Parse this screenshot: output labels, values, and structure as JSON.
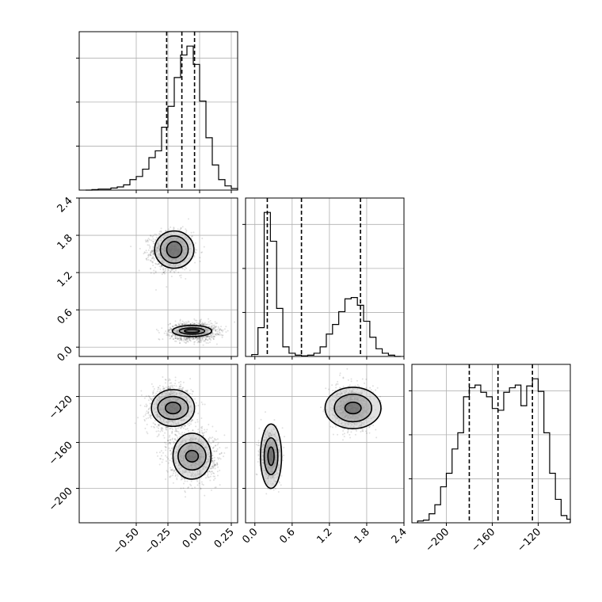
{
  "chart_data": {
    "type": "corner",
    "title": "",
    "parameters": [
      {
        "ticks": [
          -0.5,
          -0.25,
          0.0,
          0.25
        ],
        "tick_labels": [
          "−0.50",
          "−0.25",
          "0.00",
          "0.25"
        ],
        "range": [
          -0.95,
          0.3
        ],
        "quantiles": [
          -0.26,
          -0.14,
          -0.04
        ],
        "hist": {
          "edges": [
            -0.9,
            -0.85,
            -0.8,
            -0.75,
            -0.7,
            -0.65,
            -0.6,
            -0.55,
            -0.5,
            -0.45,
            -0.4,
            -0.35,
            -0.3,
            -0.25,
            -0.2,
            -0.15,
            -0.1,
            -0.05,
            0.0,
            0.05,
            0.1,
            0.15,
            0.2,
            0.25,
            0.3
          ],
          "counts": [
            0,
            1,
            2,
            2,
            4,
            6,
            10,
            20,
            26,
            40,
            62,
            75,
            120,
            160,
            215,
            258,
            275,
            240,
            170,
            100,
            48,
            20,
            8,
            3
          ]
        }
      },
      {
        "ticks": [
          0.0,
          0.6,
          1.2,
          1.8,
          2.4
        ],
        "tick_labels": [
          "0.0",
          "0.6",
          "1.2",
          "1.8",
          "2.4"
        ],
        "range": [
          -0.15,
          2.4
        ],
        "quantiles": [
          0.2,
          0.75,
          1.7
        ],
        "hist": {
          "edges": [
            -0.05,
            0.05,
            0.15,
            0.25,
            0.35,
            0.45,
            0.55,
            0.65,
            0.75,
            0.85,
            0.95,
            1.05,
            1.15,
            1.25,
            1.35,
            1.45,
            1.55,
            1.65,
            1.75,
            1.85,
            1.95,
            2.05,
            2.15,
            2.25,
            2.35
          ],
          "counts": [
            3,
            45,
            225,
            180,
            75,
            15,
            5,
            2,
            1,
            2,
            5,
            15,
            35,
            50,
            70,
            90,
            92,
            80,
            55,
            30,
            12,
            5,
            2,
            0
          ]
        }
      },
      {
        "ticks": [
          -200,
          -160,
          -120
        ],
        "tick_labels": [
          "−200",
          "−160",
          "−120"
        ],
        "range": [
          -230,
          -92
        ],
        "quantiles": [
          -180,
          -155,
          -125
        ],
        "hist": {
          "edges": [
            -225,
            -220,
            -215,
            -210,
            -205,
            -200,
            -195,
            -190,
            -185,
            -180,
            -175,
            -170,
            -165,
            -160,
            -155,
            -150,
            -145,
            -140,
            -135,
            -130,
            -125,
            -120,
            -115,
            -110,
            -105,
            -100,
            -95,
            -92
          ],
          "counts": [
            2,
            3,
            10,
            20,
            40,
            55,
            82,
            100,
            140,
            150,
            153,
            145,
            140,
            127,
            125,
            145,
            150,
            153,
            130,
            152,
            160,
            146,
            100,
            55,
            26,
            8,
            4
          ]
        }
      }
    ],
    "scatter_components": [
      {
        "p0": -0.22,
        "p1": 1.55,
        "p2": -130,
        "s0": 0.08,
        "s1": 0.15,
        "s2": 9,
        "weight": 0.5
      },
      {
        "p0": -0.05,
        "p1": 0.25,
        "p2": -172,
        "s0": 0.09,
        "s1": 0.07,
        "s2": 10,
        "weight": 0.5
      }
    ],
    "contours": {
      "p1_vs_p0": [
        {
          "cx": -0.2,
          "cy": 1.57,
          "levels": [
            [
              0.06,
              0.13
            ],
            [
              0.11,
              0.22
            ],
            [
              0.155,
              0.3
            ]
          ]
        },
        {
          "cx": -0.06,
          "cy": 0.26,
          "levels": [
            [
              0.06,
              0.025
            ],
            [
              0.1,
              0.05
            ],
            [
              0.155,
              0.09
            ]
          ]
        }
      ],
      "p2_vs_p0": [
        {
          "cx": -0.21,
          "cy": -130,
          "levels": [
            [
              0.06,
              5
            ],
            [
              0.12,
              10
            ],
            [
              0.17,
              16
            ]
          ]
        },
        {
          "cx": -0.06,
          "cy": -172,
          "levels": [
            [
              0.05,
              5
            ],
            [
              0.11,
              12
            ],
            [
              0.15,
              20
            ]
          ]
        }
      ],
      "p2_vs_p1": [
        {
          "cx": 0.26,
          "cy": -172,
          "levels": [
            [
              0.05,
              8
            ],
            [
              0.11,
              16
            ],
            [
              0.17,
              28
            ]
          ]
        },
        {
          "cx": 1.58,
          "cy": -130,
          "levels": [
            [
              0.13,
              5
            ],
            [
              0.3,
              12
            ],
            [
              0.45,
              18
            ]
          ]
        }
      ]
    },
    "grid": true,
    "legend": "none"
  }
}
